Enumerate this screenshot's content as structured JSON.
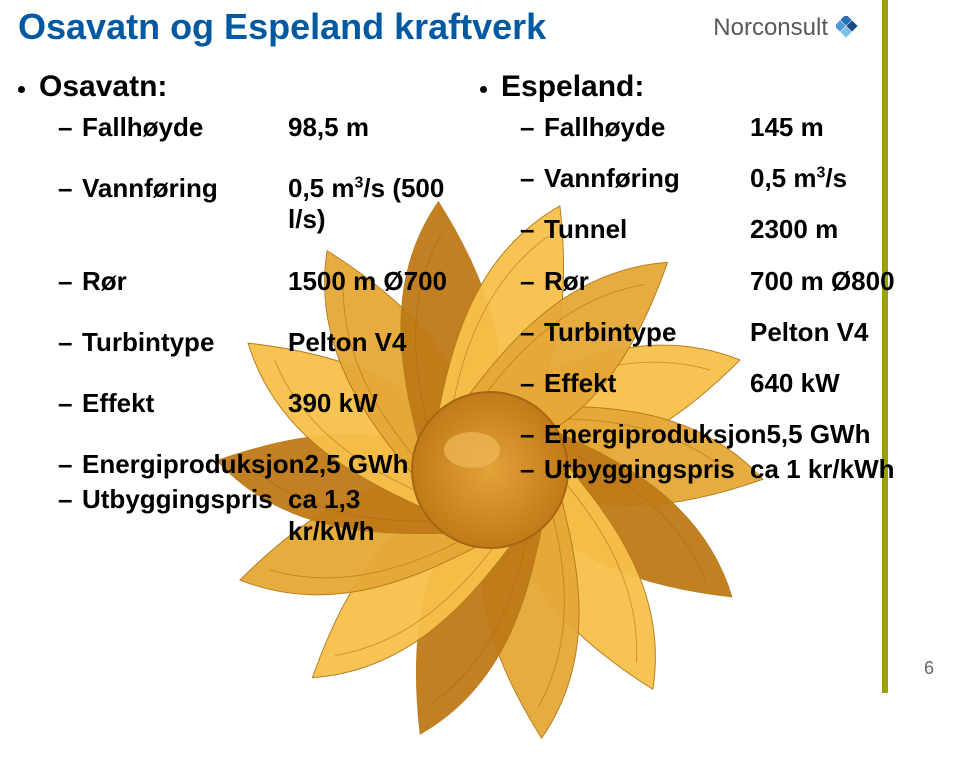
{
  "brand": {
    "name": "Norconsult"
  },
  "title": "Osavatn og Espeland kraftverk",
  "page_number": "6",
  "left": {
    "heading": "Osavatn:",
    "rows": [
      {
        "label": "Fallhøyde",
        "value": "98,5 m"
      },
      {
        "label": "Vannføring",
        "value_html": "0,5 m<span class=\"sup\">3</span>/s (500 l/s)"
      },
      {
        "label": "Rør",
        "value": "1500 m Ø700"
      },
      {
        "label": "Turbintype",
        "value": "Pelton V4"
      },
      {
        "label": "Effekt",
        "value": "390 kW"
      },
      {
        "label": "Energiproduksjon",
        "value": "2,5 GWh"
      },
      {
        "label": "Utbyggingspris",
        "value": "ca 1,3 kr/kWh"
      }
    ]
  },
  "right": {
    "heading": "Espeland:",
    "rows": [
      {
        "label": "Fallhøyde",
        "value": "145 m"
      },
      {
        "label": "Vannføring",
        "value_html": "0,5 m<span class=\"sup\">3</span>/s"
      },
      {
        "label": "Tunnel",
        "value": "2300 m"
      },
      {
        "label": "Rør",
        "value": "700 m Ø800"
      },
      {
        "label": "Turbintype",
        "value": "Pelton V4"
      },
      {
        "label": "Effekt",
        "value": "640 kW"
      },
      {
        "label": "Energiproduksjon",
        "value": "5,5 GWh"
      },
      {
        "label": "Utbyggingspris",
        "value": "ca 1 kr/kWh"
      }
    ]
  },
  "style": {
    "title_color": "#0059a1",
    "accent_stripe_color": "#9aa200",
    "flower_center": "#d88a1b",
    "flower_petal_light": "#f7c14a",
    "flower_petal_mid": "#e6a836",
    "flower_petal_dark": "#c07a18",
    "brand_diamond_colors": [
      "#2b6fb3",
      "#4f9bd9",
      "#1a4d80",
      "#7fbde8"
    ]
  }
}
